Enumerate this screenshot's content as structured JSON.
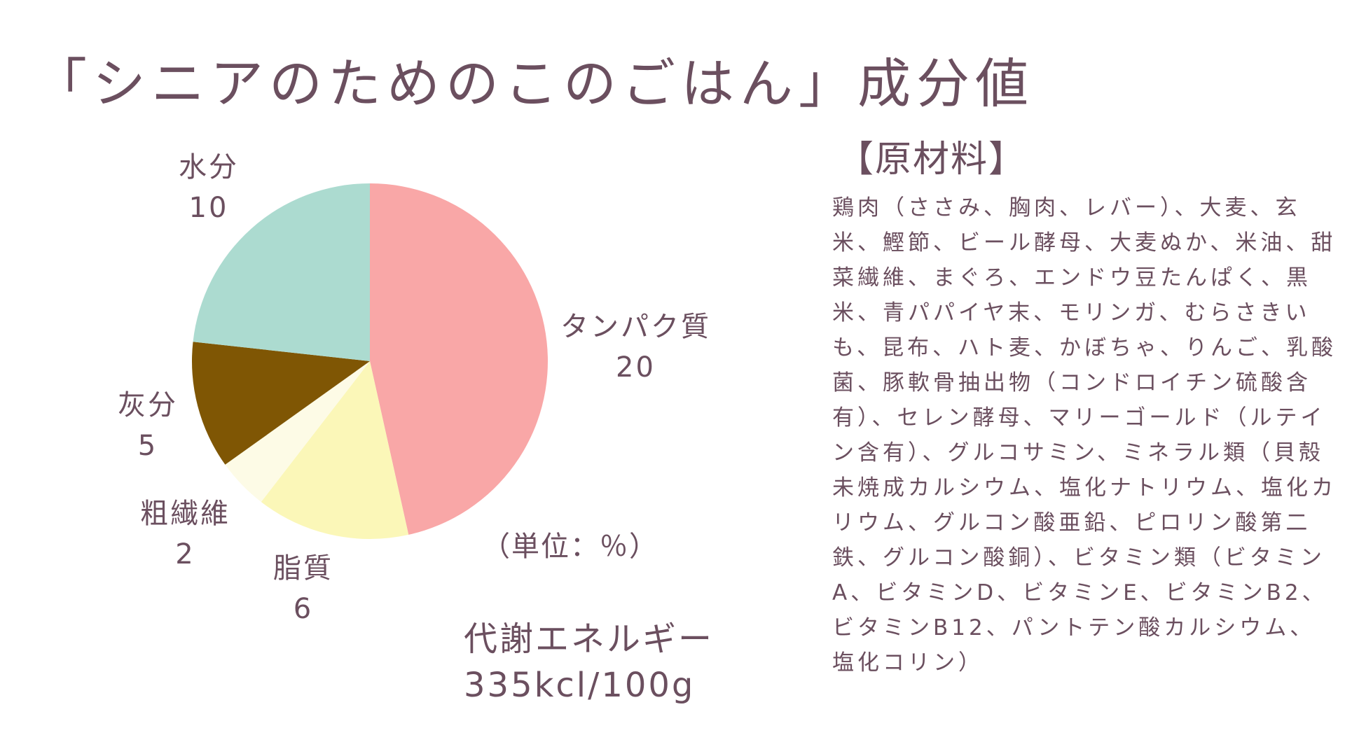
{
  "title": "「シニアのためのこのごはん」成分値",
  "chart_data": {
    "type": "pie",
    "title": "「シニアのためのこのごはん」成分値",
    "unit_label": "（単位：％）",
    "start_angle_deg": 0,
    "direction": "clockwise",
    "slices": [
      {
        "label": "タンパク質",
        "value": 20,
        "color": "#f9a7a7"
      },
      {
        "label": "脂質",
        "value": 6,
        "color": "#fbf7b8"
      },
      {
        "label": "粗繊維",
        "value": 2,
        "color": "#fdfbe6"
      },
      {
        "label": "灰分",
        "value": 5,
        "color": "#7f5604"
      },
      {
        "label": "水分",
        "value": 10,
        "color": "#acdbd0"
      }
    ]
  },
  "energy": {
    "label": "代謝エネルギー",
    "value": "335kcl/100g"
  },
  "ingredients": {
    "heading": "【原材料】",
    "text": "鶏肉（ささみ、胸肉、レバー）、大麦、玄米、鰹節、ビール酵母、大麦ぬか、米油、甜菜繊維、まぐろ、エンドウ豆たんぱく、黒米、青パパイヤ末、モリンガ、むらさきいも、昆布、ハト麦、かぼちゃ、りんご、乳酸菌、豚軟骨抽出物（コンドロイチン硫酸含有）、セレン酵母、マリーゴールド（ルテイン含有）、グルコサミン、ミネラル類（貝殻未焼成カルシウム、塩化ナトリウム、塩化カリウム、グルコン酸亜鉛、ピロリン酸第二鉄、グルコン酸銅）、ビタミン類（ビタミンA、ビタミンD、ビタミンE、ビタミンB2、ビタミンB12、パントテン酸カルシウム、塩化コリン）"
  }
}
